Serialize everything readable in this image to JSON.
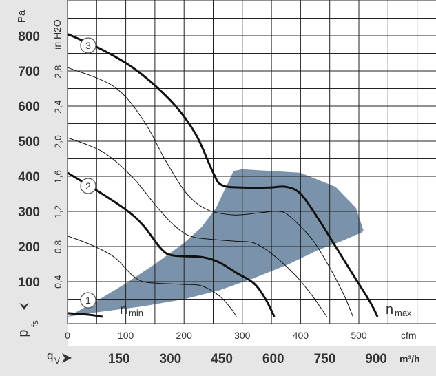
{
  "chart_data": {
    "type": "line",
    "y_unit_main": "Pa",
    "y_unit_alt": "in H2O",
    "y_axis_label": "p",
    "y_axis_sub": "fs",
    "x_unit_top": "cfm",
    "x_axis_label": "q",
    "x_axis_sub": "V",
    "x_unit_bottom": "m³/h",
    "y_ticks_pa": [
      "100",
      "200",
      "300",
      "400",
      "500",
      "600",
      "700",
      "800"
    ],
    "y_ticks_inh2o": [
      "0,4",
      "0,8",
      "1,2",
      "1,6",
      "2,0",
      "2,4",
      "2,8"
    ],
    "x_ticks_cfm": [
      "0",
      "100",
      "200",
      "300",
      "400",
      "500"
    ],
    "x_ticks_m3h": [
      "150",
      "300",
      "450",
      "600",
      "750",
      "900"
    ],
    "xlim_cfm": [
      0,
      600
    ],
    "ylim_pa": [
      0,
      850
    ],
    "grid": true,
    "operating_range_label": "n",
    "operating_range_min_sub": "min",
    "operating_range_max_sub": "max",
    "operating_region_color": "#7b93aa",
    "series": [
      {
        "name": "3",
        "style": "bold",
        "points": [
          [
            0,
            805
          ],
          [
            60,
            760
          ],
          [
            120,
            700
          ],
          [
            180,
            610
          ],
          [
            220,
            520
          ],
          [
            250,
            410
          ],
          [
            265,
            375
          ],
          [
            300,
            368
          ],
          [
            345,
            368
          ],
          [
            375,
            370
          ],
          [
            400,
            350
          ],
          [
            430,
            280
          ],
          [
            460,
            200
          ],
          [
            490,
            120
          ],
          [
            520,
            40
          ],
          [
            532,
            0
          ]
        ]
      },
      {
        "name": "2",
        "style": "bold",
        "points": [
          [
            0,
            410
          ],
          [
            50,
            360
          ],
          [
            100,
            305
          ],
          [
            130,
            260
          ],
          [
            160,
            195
          ],
          [
            180,
            175
          ],
          [
            230,
            170
          ],
          [
            260,
            155
          ],
          [
            290,
            125
          ],
          [
            320,
            95
          ],
          [
            340,
            50
          ],
          [
            355,
            0
          ]
        ]
      },
      {
        "name": "1",
        "style": "bold",
        "points": [
          [
            0,
            10
          ],
          [
            20,
            8
          ],
          [
            40,
            5
          ],
          [
            60,
            0
          ]
        ]
      },
      {
        "name": "",
        "style": "thin",
        "points": [
          [
            0,
            710
          ],
          [
            80,
            655
          ],
          [
            130,
            560
          ],
          [
            170,
            440
          ],
          [
            205,
            350
          ],
          [
            240,
            305
          ],
          [
            285,
            290
          ],
          [
            330,
            296
          ],
          [
            360,
            300
          ],
          [
            380,
            288
          ],
          [
            420,
            220
          ],
          [
            450,
            140
          ],
          [
            475,
            60
          ],
          [
            490,
            0
          ]
        ]
      },
      {
        "name": "",
        "style": "thin",
        "points": [
          [
            0,
            510
          ],
          [
            60,
            470
          ],
          [
            110,
            400
          ],
          [
            150,
            320
          ],
          [
            180,
            265
          ],
          [
            210,
            230
          ],
          [
            250,
            220
          ],
          [
            290,
            215
          ],
          [
            320,
            210
          ],
          [
            350,
            180
          ],
          [
            390,
            120
          ],
          [
            420,
            60
          ],
          [
            445,
            0
          ]
        ]
      },
      {
        "name": "",
        "style": "thin",
        "points": [
          [
            0,
            230
          ],
          [
            40,
            205
          ],
          [
            80,
            170
          ],
          [
            110,
            120
          ],
          [
            130,
            100
          ],
          [
            160,
            95
          ],
          [
            200,
            92
          ],
          [
            230,
            88
          ],
          [
            260,
            60
          ],
          [
            280,
            25
          ],
          [
            290,
            0
          ]
        ]
      }
    ],
    "operating_region": [
      [
        0,
        0
      ],
      [
        60,
        15
      ],
      [
        130,
        30
      ],
      [
        200,
        50
      ],
      [
        260,
        75
      ],
      [
        320,
        110
      ],
      [
        380,
        150
      ],
      [
        430,
        190
      ],
      [
        470,
        215
      ],
      [
        505,
        240
      ],
      [
        508,
        245
      ],
      [
        495,
        310
      ],
      [
        460,
        370
      ],
      [
        400,
        410
      ],
      [
        300,
        420
      ],
      [
        285,
        415
      ],
      [
        275,
        380
      ],
      [
        255,
        310
      ],
      [
        230,
        255
      ],
      [
        200,
        210
      ],
      [
        150,
        150
      ],
      [
        100,
        95
      ],
      [
        50,
        45
      ],
      [
        0,
        0
      ]
    ]
  }
}
